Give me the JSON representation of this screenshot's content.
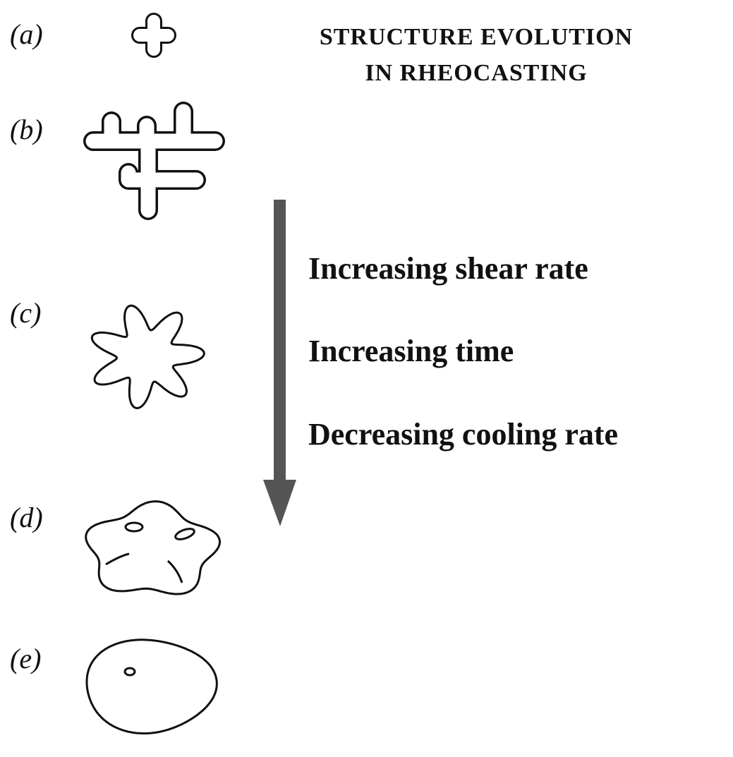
{
  "title": {
    "line1": "STRUCTURE EVOLUTION",
    "line2": "IN RHEOCASTING"
  },
  "stages": [
    {
      "label": "(a)"
    },
    {
      "label": "(b)"
    },
    {
      "label": "(c)"
    },
    {
      "label": "(d)"
    },
    {
      "label": "(e)"
    }
  ],
  "arrow_labels": [
    "Increasing shear rate",
    "Increasing time",
    "Decreasing cooling rate"
  ]
}
